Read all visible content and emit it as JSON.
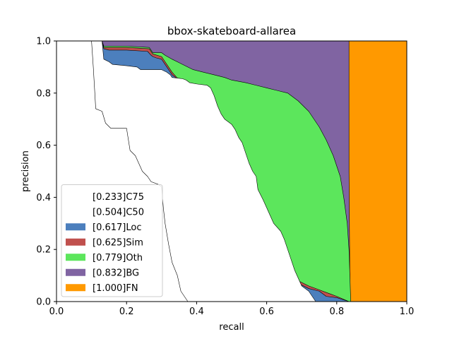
{
  "chart_data": {
    "type": "area",
    "title": "bbox-skateboard-allarea",
    "xlabel": "recall",
    "ylabel": "precision",
    "xlim": [
      0,
      1
    ],
    "ylim": [
      0,
      1
    ],
    "xticks": [
      "0.0",
      "0.2",
      "0.4",
      "0.6",
      "0.8",
      "1.0"
    ],
    "yticks": [
      "0.0",
      "0.2",
      "0.4",
      "0.6",
      "0.8",
      "1.0"
    ],
    "grid": false,
    "legend_position": "lower-left",
    "legend": [
      {
        "label": "[0.233]C75",
        "color": "#ffffff"
      },
      {
        "label": "[0.504]C50",
        "color": "#ffffff"
      },
      {
        "label": "[0.617]Loc",
        "color": "#4c7fbd"
      },
      {
        "label": "[0.625]Sim",
        "color": "#c0504d"
      },
      {
        "label": "[0.779]Oth",
        "color": "#5ce65c"
      },
      {
        "label": "[0.832]BG",
        "color": "#8064a2"
      },
      {
        "label": "[1.000]FN",
        "color": "#ff9900"
      }
    ],
    "series": [
      {
        "name": "[0.233]C75",
        "points": [
          [
            0,
            1
          ],
          [
            0.1,
            1
          ],
          [
            0.105,
            0.9
          ],
          [
            0.112,
            0.74
          ],
          [
            0.13,
            0.73
          ],
          [
            0.14,
            0.685
          ],
          [
            0.155,
            0.665
          ],
          [
            0.2,
            0.665
          ],
          [
            0.21,
            0.58
          ],
          [
            0.225,
            0.56
          ],
          [
            0.235,
            0.53
          ],
          [
            0.245,
            0.5
          ],
          [
            0.26,
            0.48
          ],
          [
            0.27,
            0.46
          ],
          [
            0.29,
            0.45
          ],
          [
            0.3,
            0.44
          ],
          [
            0.305,
            0.36
          ],
          [
            0.31,
            0.3
          ],
          [
            0.32,
            0.22
          ],
          [
            0.33,
            0.15
          ],
          [
            0.345,
            0.1
          ],
          [
            0.355,
            0.04
          ],
          [
            0.365,
            0.02
          ],
          [
            0.375,
            0
          ]
        ]
      },
      {
        "name": "[0.504]C50",
        "points": [
          [
            0,
            1
          ],
          [
            0.13,
            1
          ],
          [
            0.135,
            0.93
          ],
          [
            0.15,
            0.92
          ],
          [
            0.16,
            0.91
          ],
          [
            0.2,
            0.905
          ],
          [
            0.23,
            0.9
          ],
          [
            0.24,
            0.89
          ],
          [
            0.3,
            0.89
          ],
          [
            0.315,
            0.88
          ],
          [
            0.325,
            0.87
          ],
          [
            0.33,
            0.86
          ],
          [
            0.36,
            0.855
          ],
          [
            0.37,
            0.85
          ],
          [
            0.38,
            0.84
          ],
          [
            0.4,
            0.835
          ],
          [
            0.43,
            0.83
          ],
          [
            0.44,
            0.82
          ],
          [
            0.45,
            0.79
          ],
          [
            0.46,
            0.75
          ],
          [
            0.47,
            0.72
          ],
          [
            0.48,
            0.7
          ],
          [
            0.49,
            0.69
          ],
          [
            0.5,
            0.68
          ],
          [
            0.51,
            0.66
          ],
          [
            0.52,
            0.63
          ],
          [
            0.53,
            0.61
          ],
          [
            0.54,
            0.57
          ],
          [
            0.55,
            0.53
          ],
          [
            0.56,
            0.5
          ],
          [
            0.57,
            0.48
          ],
          [
            0.575,
            0.43
          ],
          [
            0.59,
            0.39
          ],
          [
            0.6,
            0.36
          ],
          [
            0.61,
            0.33
          ],
          [
            0.62,
            0.3
          ],
          [
            0.64,
            0.27
          ],
          [
            0.65,
            0.24
          ],
          [
            0.66,
            0.2
          ],
          [
            0.67,
            0.16
          ],
          [
            0.68,
            0.12
          ],
          [
            0.69,
            0.09
          ],
          [
            0.7,
            0.06
          ],
          [
            0.72,
            0.04
          ],
          [
            0.73,
            0.02
          ],
          [
            0.74,
            0
          ]
        ]
      },
      {
        "name": "[0.617]Loc",
        "points": [
          [
            0,
            1
          ],
          [
            0.13,
            1
          ],
          [
            0.135,
            0.97
          ],
          [
            0.15,
            0.965
          ],
          [
            0.2,
            0.965
          ],
          [
            0.26,
            0.96
          ],
          [
            0.27,
            0.945
          ],
          [
            0.275,
            0.94
          ],
          [
            0.285,
            0.935
          ],
          [
            0.3,
            0.93
          ],
          [
            0.31,
            0.91
          ],
          [
            0.32,
            0.89
          ],
          [
            0.33,
            0.87
          ],
          [
            0.34,
            0.86
          ],
          [
            0.35,
            0.84
          ],
          [
            0.36,
            0.82
          ],
          [
            0.37,
            0.8
          ],
          [
            0.38,
            0.78
          ],
          [
            0.39,
            0.75
          ],
          [
            0.4,
            0.73
          ],
          [
            0.41,
            0.71
          ],
          [
            0.43,
            0.69
          ],
          [
            0.44,
            0.66
          ],
          [
            0.45,
            0.63
          ],
          [
            0.46,
            0.6
          ],
          [
            0.47,
            0.57
          ],
          [
            0.48,
            0.55
          ],
          [
            0.49,
            0.53
          ],
          [
            0.5,
            0.5
          ],
          [
            0.51,
            0.46
          ],
          [
            0.52,
            0.43
          ],
          [
            0.53,
            0.4
          ],
          [
            0.54,
            0.37
          ],
          [
            0.55,
            0.35
          ],
          [
            0.56,
            0.32
          ],
          [
            0.57,
            0.29
          ],
          [
            0.58,
            0.27
          ],
          [
            0.59,
            0.24
          ],
          [
            0.6,
            0.22
          ],
          [
            0.61,
            0.19
          ],
          [
            0.62,
            0.17
          ],
          [
            0.63,
            0.15
          ],
          [
            0.64,
            0.13
          ],
          [
            0.65,
            0.11
          ],
          [
            0.67,
            0.09
          ],
          [
            0.69,
            0.07
          ],
          [
            0.72,
            0.05
          ],
          [
            0.75,
            0.04
          ],
          [
            0.77,
            0.02
          ],
          [
            0.8,
            0.015
          ],
          [
            0.835,
            0
          ]
        ]
      },
      {
        "name": "[0.625]Sim",
        "points": [
          [
            0,
            1
          ],
          [
            0.13,
            1
          ],
          [
            0.135,
            0.975
          ],
          [
            0.2,
            0.975
          ],
          [
            0.265,
            0.97
          ],
          [
            0.275,
            0.95
          ],
          [
            0.3,
            0.94
          ],
          [
            0.31,
            0.92
          ],
          [
            0.33,
            0.88
          ],
          [
            0.35,
            0.85
          ],
          [
            0.37,
            0.81
          ],
          [
            0.39,
            0.76
          ],
          [
            0.41,
            0.72
          ],
          [
            0.43,
            0.7
          ],
          [
            0.45,
            0.64
          ],
          [
            0.47,
            0.58
          ],
          [
            0.49,
            0.54
          ],
          [
            0.51,
            0.47
          ],
          [
            0.53,
            0.41
          ],
          [
            0.55,
            0.36
          ],
          [
            0.57,
            0.3
          ],
          [
            0.59,
            0.25
          ],
          [
            0.61,
            0.2
          ],
          [
            0.63,
            0.16
          ],
          [
            0.65,
            0.12
          ],
          [
            0.67,
            0.1
          ],
          [
            0.69,
            0.08
          ],
          [
            0.72,
            0.06
          ],
          [
            0.75,
            0.045
          ],
          [
            0.78,
            0.03
          ],
          [
            0.8,
            0.02
          ],
          [
            0.835,
            0
          ]
        ]
      },
      {
        "name": "[0.779]Oth",
        "points": [
          [
            0,
            1
          ],
          [
            0.13,
            1
          ],
          [
            0.135,
            0.98
          ],
          [
            0.2,
            0.98
          ],
          [
            0.265,
            0.975
          ],
          [
            0.275,
            0.955
          ],
          [
            0.3,
            0.955
          ],
          [
            0.31,
            0.945
          ],
          [
            0.33,
            0.93
          ],
          [
            0.36,
            0.91
          ],
          [
            0.39,
            0.89
          ],
          [
            0.42,
            0.88
          ],
          [
            0.45,
            0.87
          ],
          [
            0.48,
            0.86
          ],
          [
            0.5,
            0.85
          ],
          [
            0.54,
            0.84
          ],
          [
            0.57,
            0.83
          ],
          [
            0.6,
            0.82
          ],
          [
            0.63,
            0.81
          ],
          [
            0.66,
            0.8
          ],
          [
            0.69,
            0.77
          ],
          [
            0.72,
            0.73
          ],
          [
            0.75,
            0.67
          ],
          [
            0.77,
            0.62
          ],
          [
            0.79,
            0.56
          ],
          [
            0.81,
            0.48
          ],
          [
            0.82,
            0.4
          ],
          [
            0.83,
            0.3
          ],
          [
            0.835,
            0.2
          ],
          [
            0.84,
            0
          ]
        ]
      },
      {
        "name": "[0.832]BG",
        "points": [
          [
            0,
            1
          ],
          [
            0.835,
            1
          ],
          [
            0.835,
            0.5
          ],
          [
            0.838,
            0
          ]
        ]
      },
      {
        "name": "[1.000]FN",
        "points": [
          [
            0,
            1
          ],
          [
            1,
            1
          ],
          [
            1,
            0
          ]
        ]
      }
    ]
  }
}
